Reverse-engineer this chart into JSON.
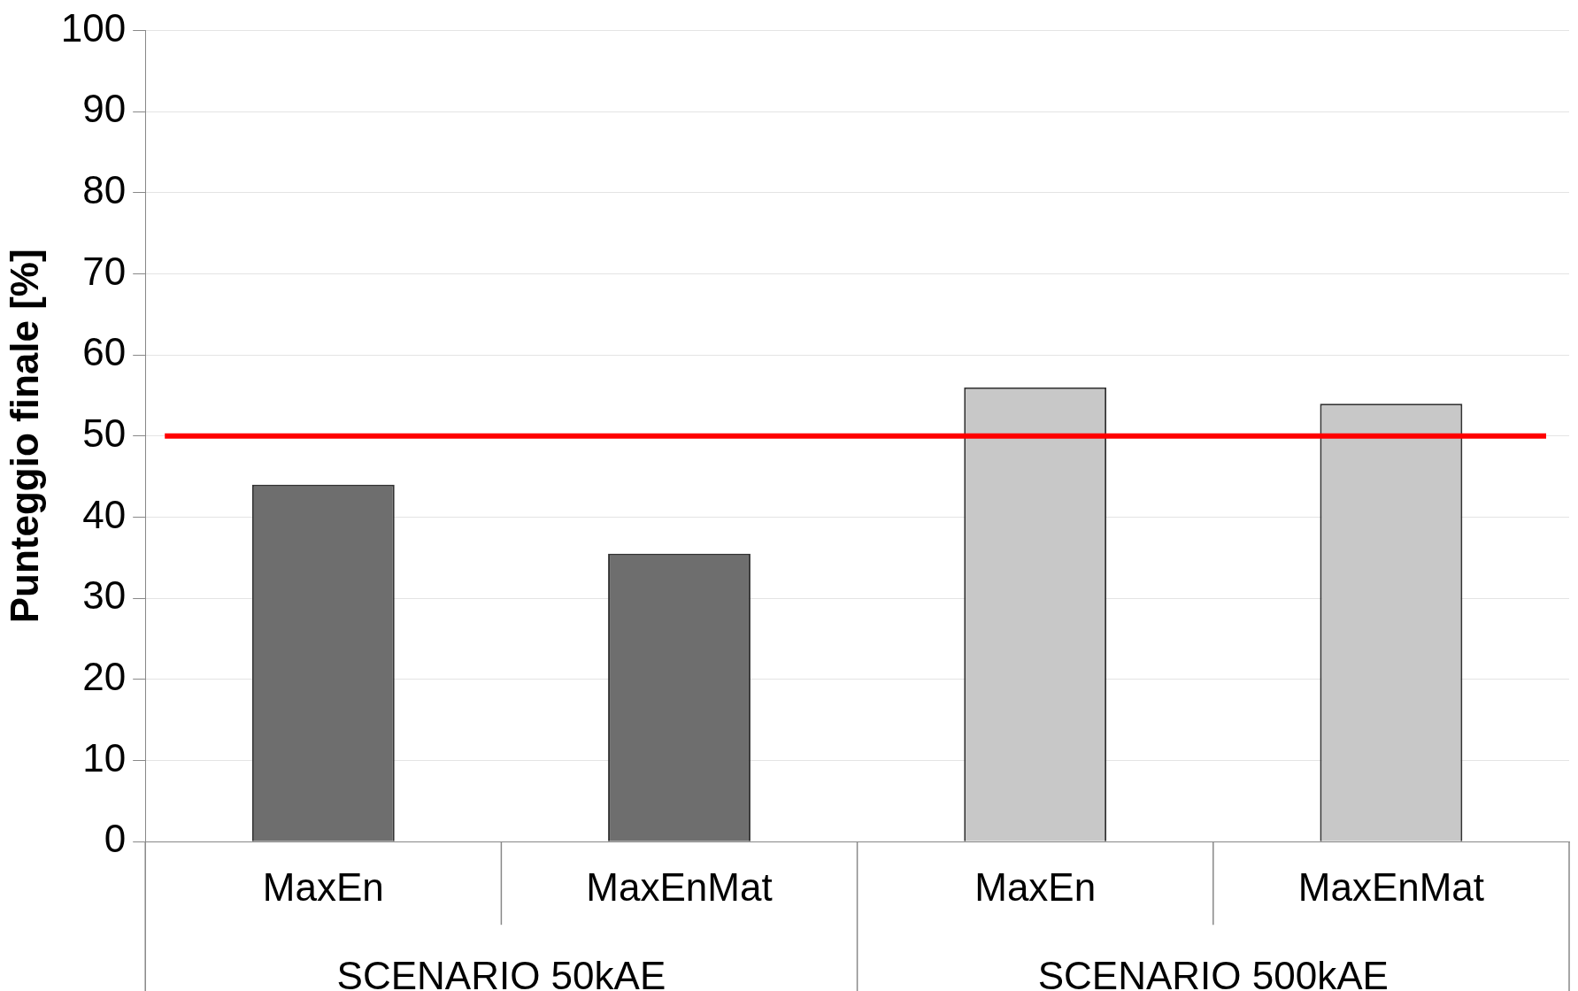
{
  "chart_data": {
    "type": "bar",
    "ylabel": "Punteggio finale [%]",
    "categories": [
      "MaxEn",
      "MaxEnMat",
      "MaxEn",
      "MaxEnMat"
    ],
    "values": [
      44,
      35.5,
      56,
      54
    ],
    "colors": [
      "#6e6e6e",
      "#6e6e6e",
      "#c8c8c8",
      "#c8c8c8"
    ],
    "ylim": [
      0,
      100
    ],
    "yticks": [
      0,
      10,
      20,
      30,
      40,
      50,
      60,
      70,
      80,
      90,
      100
    ],
    "grid": "y",
    "legend": false,
    "ref_lines": [
      {
        "axis": "y",
        "value": 50,
        "color": "#ff0000"
      }
    ],
    "annotations": [
      "SCENARIO 50kAE",
      "SCENARIO 500kAE"
    ]
  }
}
